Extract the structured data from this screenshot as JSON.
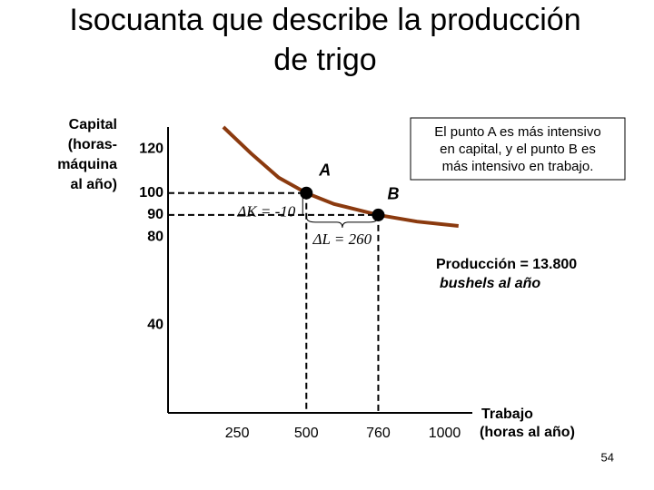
{
  "chart_data": {
    "type": "line",
    "title": [
      "Isocuanta que describe la producción",
      "de trigo"
    ],
    "y_label": [
      "Capital",
      "(horas-",
      "máquina",
      "al año)"
    ],
    "x_label": [
      "Trabajo",
      "(horas al año)"
    ],
    "xlim": [
      0,
      1100
    ],
    "ylim": [
      0,
      130
    ],
    "xticks": [
      250,
      500,
      760,
      1000
    ],
    "yticks": [
      40,
      80,
      90,
      100,
      120
    ],
    "curve": {
      "color": "#8b3a0f",
      "x": [
        200,
        300,
        400,
        500,
        600,
        760,
        900,
        1050
      ],
      "values": [
        130,
        118,
        107,
        100,
        95,
        90,
        87,
        85
      ]
    },
    "points": [
      {
        "label": "A",
        "x": 500,
        "y": 100
      },
      {
        "label": "B",
        "x": 760,
        "y": 90
      }
    ],
    "delta_k": "ΔK = -10",
    "delta_l": "ΔL = 260",
    "curve_label": [
      "Producción = 13.800",
      "bushels al año"
    ],
    "note": [
      "El punto A es más intensivo",
      "en capital, y el punto B es",
      "más intensivo en trabajo."
    ],
    "page_number": "54"
  }
}
